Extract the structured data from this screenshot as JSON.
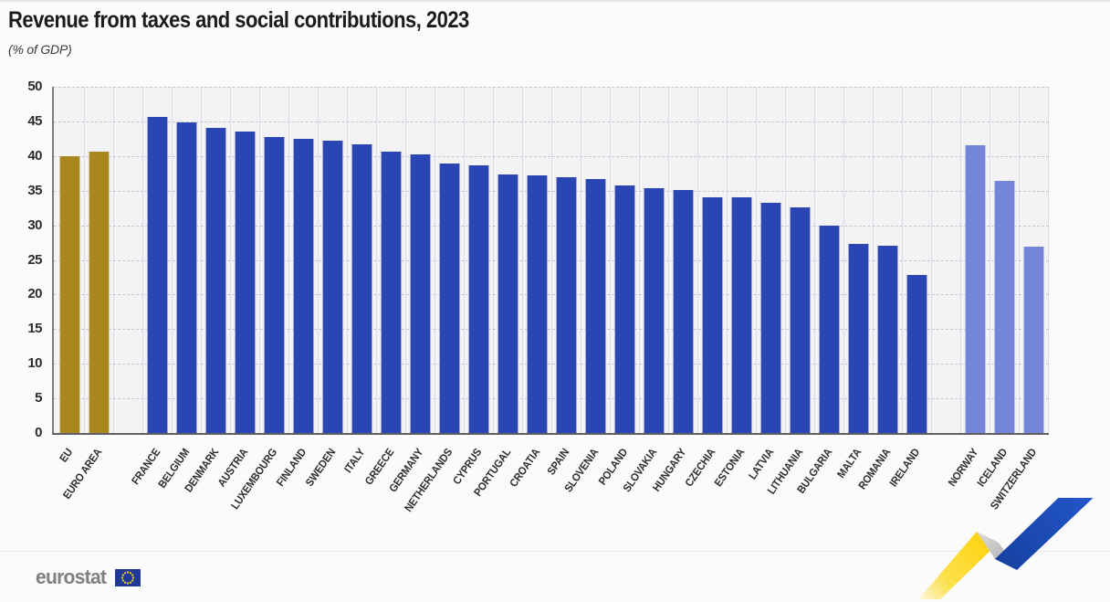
{
  "header": {
    "title": "Revenue from taxes and social contributions, 2023",
    "subtitle": "(% of GDP)"
  },
  "footer": {
    "logo_text": "eurostat"
  },
  "colors": {
    "eu_aggregate": "#a8881c",
    "eu_member": "#2a46b4",
    "efta": "#7586d8",
    "plot_background": "#f3f3f5",
    "flag_blue": "#1e3a96",
    "star_yellow": "#ffd617",
    "ribbon_yellow": "#ffd10a",
    "ribbon_grey": "#b9b9b9",
    "ribbon_blue": "#1d4db8"
  },
  "chart_data": {
    "type": "bar",
    "title": "Revenue from taxes and social contributions, 2023",
    "subtitle": "(% of GDP)",
    "xlabel": "",
    "ylabel": "% of GDP",
    "ylim": [
      0,
      50
    ],
    "ytick_step": 5,
    "grid": "horizontal dashed gridlines + vertical light column lines",
    "legend": "none",
    "groups": {
      "eu_aggregate": "EU aggregates (gold)",
      "eu_member": "EU member states (dark blue)",
      "efta": "Non-EU / EFTA countries (light blue)"
    },
    "bars": [
      {
        "label": "EU",
        "value": 40.0,
        "group": "eu_aggregate"
      },
      {
        "label": "EURO AREA",
        "value": 40.6,
        "group": "eu_aggregate"
      },
      {
        "label": "FRANCE",
        "value": 45.6,
        "group": "eu_member"
      },
      {
        "label": "BELGIUM",
        "value": 44.8,
        "group": "eu_member"
      },
      {
        "label": "DENMARK",
        "value": 44.1,
        "group": "eu_member"
      },
      {
        "label": "AUSTRIA",
        "value": 43.5,
        "group": "eu_member"
      },
      {
        "label": "LUXEMBOURG",
        "value": 42.8,
        "group": "eu_member"
      },
      {
        "label": "FINLAND",
        "value": 42.5,
        "group": "eu_member"
      },
      {
        "label": "SWEDEN",
        "value": 42.2,
        "group": "eu_member"
      },
      {
        "label": "ITALY",
        "value": 41.7,
        "group": "eu_member"
      },
      {
        "label": "GREECE",
        "value": 40.7,
        "group": "eu_member"
      },
      {
        "label": "GERMANY",
        "value": 40.3,
        "group": "eu_member"
      },
      {
        "label": "NETHERLANDS",
        "value": 38.9,
        "group": "eu_member"
      },
      {
        "label": "CYPRUS",
        "value": 38.6,
        "group": "eu_member"
      },
      {
        "label": "PORTUGAL",
        "value": 37.4,
        "group": "eu_member"
      },
      {
        "label": "CROATIA",
        "value": 37.2,
        "group": "eu_member"
      },
      {
        "label": "SPAIN",
        "value": 36.9,
        "group": "eu_member"
      },
      {
        "label": "SLOVENIA",
        "value": 36.7,
        "group": "eu_member"
      },
      {
        "label": "POLAND",
        "value": 35.8,
        "group": "eu_member"
      },
      {
        "label": "SLOVAKIA",
        "value": 35.4,
        "group": "eu_member"
      },
      {
        "label": "HUNGARY",
        "value": 35.1,
        "group": "eu_member"
      },
      {
        "label": "CZECHIA",
        "value": 34.1,
        "group": "eu_member"
      },
      {
        "label": "ESTONIA",
        "value": 34.0,
        "group": "eu_member"
      },
      {
        "label": "LATVIA",
        "value": 33.3,
        "group": "eu_member"
      },
      {
        "label": "LITHUANIA",
        "value": 32.6,
        "group": "eu_member"
      },
      {
        "label": "BULGARIA",
        "value": 30.0,
        "group": "eu_member"
      },
      {
        "label": "MALTA",
        "value": 27.3,
        "group": "eu_member"
      },
      {
        "label": "ROMANIA",
        "value": 27.1,
        "group": "eu_member"
      },
      {
        "label": "IRELAND",
        "value": 22.8,
        "group": "eu_member"
      },
      {
        "label": "NORWAY",
        "value": 41.6,
        "group": "efta"
      },
      {
        "label": "ICELAND",
        "value": 36.4,
        "group": "efta"
      },
      {
        "label": "SWITZERLAND",
        "value": 26.9,
        "group": "efta"
      }
    ]
  }
}
